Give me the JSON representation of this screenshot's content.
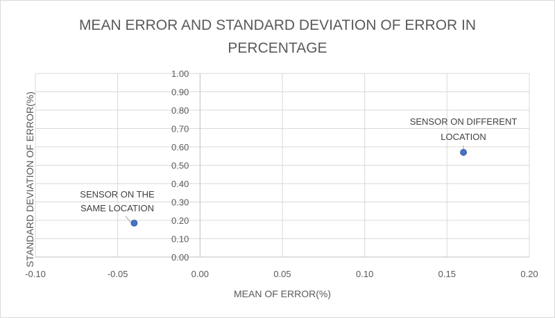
{
  "chart_data": {
    "type": "scatter",
    "title_lines": [
      "MEAN ERROR AND STANDARD DEVIATION OF ERROR IN",
      "PERCENTAGE"
    ],
    "xlabel": "MEAN OF ERROR(%)",
    "ylabel": "STANDARD DEVIATION OF ERROR(%)",
    "xlim": [
      -0.1,
      0.2
    ],
    "ylim": [
      0,
      1.0
    ],
    "x_ticks": [
      -0.1,
      -0.05,
      0.0,
      0.05,
      0.1,
      0.15,
      0.2
    ],
    "x_tick_labels": [
      "-0.10",
      "-0.05",
      "0.00",
      "0.05",
      "0.10",
      "0.15",
      "0.20"
    ],
    "y_ticks": [
      0,
      0.1,
      0.2,
      0.3,
      0.4,
      0.5,
      0.6,
      0.7,
      0.8,
      0.9,
      1.0
    ],
    "y_tick_labels": [
      "0.00",
      "0.10",
      "0.20",
      "0.30",
      "0.40",
      "0.50",
      "0.60",
      "0.70",
      "0.80",
      "0.90",
      "1.00"
    ],
    "grid": true,
    "marker_color": "#4472c4",
    "points": [
      {
        "x": -0.04,
        "y": 0.185,
        "label_lines": [
          "SENSOR ON THE",
          "SAME LOCATION"
        ]
      },
      {
        "x": 0.16,
        "y": 0.57,
        "label_lines": [
          "SENSOR ON DIFFERENT",
          "LOCATION"
        ]
      }
    ]
  }
}
